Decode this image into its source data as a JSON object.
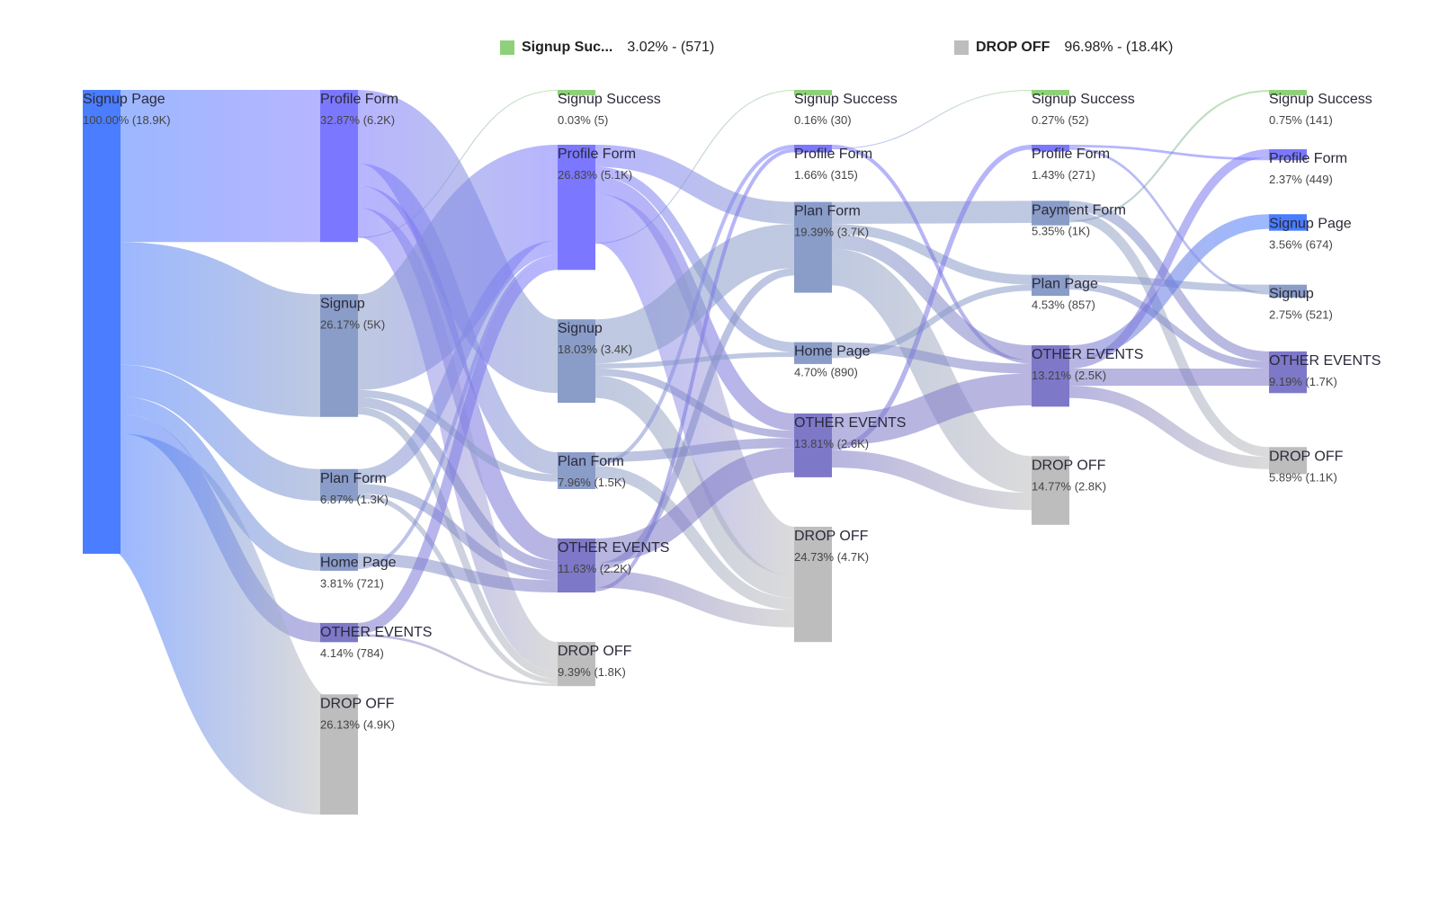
{
  "legend": [
    {
      "label": "Signup Suc...",
      "value": "3.02% - (571)",
      "color": "#8fd17a"
    },
    {
      "label": "DROP OFF",
      "value": "96.98% - (18.4K)",
      "color": "#bdbdbd"
    }
  ],
  "colors": {
    "signup_page": "#4a7dff",
    "profile_form": "#7b78ff",
    "signup": "#8a9cc8",
    "plan_form": "#8a9cc8",
    "home_page": "#8a9cc8",
    "payment_form": "#8a9cc8",
    "plan_page": "#8a9cc8",
    "other_events": "#7d78c8",
    "drop_off": "#bdbdbd",
    "signup_success": "#8fd17a"
  },
  "chart_data": {
    "type": "sankey",
    "columns": [
      {
        "nodes": [
          {
            "id": "c0_signup_page",
            "name": "Signup Page",
            "pct": "100.00%",
            "count": "(18.9K)",
            "value": 18900,
            "color": "signup_page"
          }
        ]
      },
      {
        "nodes": [
          {
            "id": "c1_profile_form",
            "name": "Profile Form",
            "pct": "32.87%",
            "count": "(6.2K)",
            "value": 6200,
            "color": "profile_form"
          },
          {
            "id": "c1_signup",
            "name": "Signup",
            "pct": "26.17%",
            "count": "(5K)",
            "value": 5000,
            "color": "signup"
          },
          {
            "id": "c1_plan_form",
            "name": "Plan Form",
            "pct": "6.87%",
            "count": "(1.3K)",
            "value": 1300,
            "color": "plan_form"
          },
          {
            "id": "c1_home_page",
            "name": "Home Page",
            "pct": "3.81%",
            "count": "(721)",
            "value": 721,
            "color": "home_page"
          },
          {
            "id": "c1_other",
            "name": "OTHER EVENTS",
            "pct": "4.14%",
            "count": "(784)",
            "value": 784,
            "color": "other_events"
          },
          {
            "id": "c1_drop",
            "name": "DROP OFF",
            "pct": "26.13%",
            "count": "(4.9K)",
            "value": 4900,
            "color": "drop_off"
          }
        ]
      },
      {
        "nodes": [
          {
            "id": "c2_success",
            "name": "Signup Success",
            "pct": "0.03%",
            "count": "(5)",
            "value": 5,
            "color": "signup_success"
          },
          {
            "id": "c2_profile_form",
            "name": "Profile Form",
            "pct": "26.83%",
            "count": "(5.1K)",
            "value": 5100,
            "color": "profile_form"
          },
          {
            "id": "c2_signup",
            "name": "Signup",
            "pct": "18.03%",
            "count": "(3.4K)",
            "value": 3400,
            "color": "signup"
          },
          {
            "id": "c2_plan_form",
            "name": "Plan Form",
            "pct": "7.96%",
            "count": "(1.5K)",
            "value": 1500,
            "color": "plan_form"
          },
          {
            "id": "c2_other",
            "name": "OTHER EVENTS",
            "pct": "11.63%",
            "count": "(2.2K)",
            "value": 2200,
            "color": "other_events"
          },
          {
            "id": "c2_drop",
            "name": "DROP OFF",
            "pct": "9.39%",
            "count": "(1.8K)",
            "value": 1800,
            "color": "drop_off"
          }
        ]
      },
      {
        "nodes": [
          {
            "id": "c3_success",
            "name": "Signup Success",
            "pct": "0.16%",
            "count": "(30)",
            "value": 30,
            "color": "signup_success"
          },
          {
            "id": "c3_profile_form",
            "name": "Profile Form",
            "pct": "1.66%",
            "count": "(315)",
            "value": 315,
            "color": "profile_form"
          },
          {
            "id": "c3_plan_form",
            "name": "Plan Form",
            "pct": "19.39%",
            "count": "(3.7K)",
            "value": 3700,
            "color": "plan_form"
          },
          {
            "id": "c3_home_page",
            "name": "Home Page",
            "pct": "4.70%",
            "count": "(890)",
            "value": 890,
            "color": "home_page"
          },
          {
            "id": "c3_other",
            "name": "OTHER EVENTS",
            "pct": "13.81%",
            "count": "(2.6K)",
            "value": 2600,
            "color": "other_events"
          },
          {
            "id": "c3_drop",
            "name": "DROP OFF",
            "pct": "24.73%",
            "count": "(4.7K)",
            "value": 4700,
            "color": "drop_off"
          }
        ]
      },
      {
        "nodes": [
          {
            "id": "c4_success",
            "name": "Signup Success",
            "pct": "0.27%",
            "count": "(52)",
            "value": 52,
            "color": "signup_success"
          },
          {
            "id": "c4_profile_form",
            "name": "Profile Form",
            "pct": "1.43%",
            "count": "(271)",
            "value": 271,
            "color": "profile_form"
          },
          {
            "id": "c4_payment_form",
            "name": "Payment Form",
            "pct": "5.35%",
            "count": "(1K)",
            "value": 1000,
            "color": "payment_form"
          },
          {
            "id": "c4_plan_page",
            "name": "Plan Page",
            "pct": "4.53%",
            "count": "(857)",
            "value": 857,
            "color": "plan_page"
          },
          {
            "id": "c4_other",
            "name": "OTHER EVENTS",
            "pct": "13.21%",
            "count": "(2.5K)",
            "value": 2500,
            "color": "other_events"
          },
          {
            "id": "c4_drop",
            "name": "DROP OFF",
            "pct": "14.77%",
            "count": "(2.8K)",
            "value": 2800,
            "color": "drop_off"
          }
        ]
      },
      {
        "nodes": [
          {
            "id": "c5_success",
            "name": "Signup Success",
            "pct": "0.75%",
            "count": "(141)",
            "value": 141,
            "color": "signup_success"
          },
          {
            "id": "c5_profile_form",
            "name": "Profile Form",
            "pct": "2.37%",
            "count": "(449)",
            "value": 449,
            "color": "profile_form"
          },
          {
            "id": "c5_signup_page",
            "name": "Signup Page",
            "pct": "3.56%",
            "count": "(674)",
            "value": 674,
            "color": "signup_page"
          },
          {
            "id": "c5_signup",
            "name": "Signup",
            "pct": "2.75%",
            "count": "(521)",
            "value": 521,
            "color": "signup"
          },
          {
            "id": "c5_other",
            "name": "OTHER EVENTS",
            "pct": "9.19%",
            "count": "(1.7K)",
            "value": 1700,
            "color": "other_events"
          },
          {
            "id": "c5_drop",
            "name": "DROP OFF",
            "pct": "5.89%",
            "count": "(1.1K)",
            "value": 1100,
            "color": "drop_off"
          }
        ]
      }
    ],
    "links": [
      {
        "source": "c0_signup_page",
        "target": "c1_profile_form",
        "value": 6200
      },
      {
        "source": "c0_signup_page",
        "target": "c1_signup",
        "value": 5000
      },
      {
        "source": "c0_signup_page",
        "target": "c1_plan_form",
        "value": 1300
      },
      {
        "source": "c0_signup_page",
        "target": "c1_home_page",
        "value": 721
      },
      {
        "source": "c0_signup_page",
        "target": "c1_other",
        "value": 784
      },
      {
        "source": "c0_signup_page",
        "target": "c1_drop",
        "value": 4900
      },
      {
        "source": "c1_profile_form",
        "target": "c2_signup",
        "value": 3000
      },
      {
        "source": "c1_profile_form",
        "target": "c2_plan_form",
        "value": 900
      },
      {
        "source": "c1_profile_form",
        "target": "c2_other",
        "value": 900
      },
      {
        "source": "c1_profile_form",
        "target": "c2_drop",
        "value": 1200
      },
      {
        "source": "c1_profile_form",
        "target": "c2_success",
        "value": 5
      },
      {
        "source": "c1_signup",
        "target": "c2_profile_form",
        "value": 3900
      },
      {
        "source": "c1_signup",
        "target": "c2_plan_form",
        "value": 300
      },
      {
        "source": "c1_signup",
        "target": "c2_other",
        "value": 400
      },
      {
        "source": "c1_signup",
        "target": "c2_drop",
        "value": 300
      },
      {
        "source": "c1_plan_form",
        "target": "c2_profile_form",
        "value": 600
      },
      {
        "source": "c1_plan_form",
        "target": "c2_other",
        "value": 400
      },
      {
        "source": "c1_plan_form",
        "target": "c2_drop",
        "value": 200
      },
      {
        "source": "c1_home_page",
        "target": "c2_other",
        "value": 500
      },
      {
        "source": "c1_home_page",
        "target": "c2_profile_form",
        "value": 150
      },
      {
        "source": "c1_other",
        "target": "c2_profile_form",
        "value": 450
      },
      {
        "source": "c1_other",
        "target": "c2_drop",
        "value": 100
      },
      {
        "source": "c2_profile_form",
        "target": "c3_plan_form",
        "value": 900
      },
      {
        "source": "c2_profile_form",
        "target": "c3_home_page",
        "value": 400
      },
      {
        "source": "c2_profile_form",
        "target": "c3_other",
        "value": 700
      },
      {
        "source": "c2_profile_form",
        "target": "c3_drop",
        "value": 2000
      },
      {
        "source": "c2_profile_form",
        "target": "c3_success",
        "value": 15
      },
      {
        "source": "c2_signup",
        "target": "c3_plan_form",
        "value": 1800
      },
      {
        "source": "c2_signup",
        "target": "c3_home_page",
        "value": 200
      },
      {
        "source": "c2_signup",
        "target": "c3_other",
        "value": 300
      },
      {
        "source": "c2_signup",
        "target": "c3_drop",
        "value": 900
      },
      {
        "source": "c2_plan_form",
        "target": "c3_other",
        "value": 400
      },
      {
        "source": "c2_plan_form",
        "target": "c3_profile_form",
        "value": 150
      },
      {
        "source": "c2_plan_form",
        "target": "c3_drop",
        "value": 500
      },
      {
        "source": "c2_other",
        "target": "c3_other",
        "value": 1000
      },
      {
        "source": "c2_other",
        "target": "c3_plan_form",
        "value": 300
      },
      {
        "source": "c2_other",
        "target": "c3_drop",
        "value": 700
      },
      {
        "source": "c2_other",
        "target": "c3_profile_form",
        "value": 150
      },
      {
        "source": "c3_plan_form",
        "target": "c4_payment_form",
        "value": 900
      },
      {
        "source": "c3_plan_form",
        "target": "c4_plan_page",
        "value": 400
      },
      {
        "source": "c3_plan_form",
        "target": "c4_other",
        "value": 600
      },
      {
        "source": "c3_plan_form",
        "target": "c4_drop",
        "value": 1500
      },
      {
        "source": "c3_profile_form",
        "target": "c4_other",
        "value": 150
      },
      {
        "source": "c3_profile_form",
        "target": "c4_success",
        "value": 30
      },
      {
        "source": "c3_home_page",
        "target": "c4_other",
        "value": 400
      },
      {
        "source": "c3_home_page",
        "target": "c4_plan_page",
        "value": 250
      },
      {
        "source": "c3_other",
        "target": "c4_other",
        "value": 1300
      },
      {
        "source": "c3_other",
        "target": "c4_profile_form",
        "value": 200
      },
      {
        "source": "c3_other",
        "target": "c4_drop",
        "value": 700
      },
      {
        "source": "c4_payment_form",
        "target": "c5_other",
        "value": 400
      },
      {
        "source": "c4_payment_form",
        "target": "c5_drop",
        "value": 400
      },
      {
        "source": "c4_payment_form",
        "target": "c5_success",
        "value": 80
      },
      {
        "source": "c4_plan_page",
        "target": "c5_signup",
        "value": 300
      },
      {
        "source": "c4_plan_page",
        "target": "c5_other",
        "value": 300
      },
      {
        "source": "c4_other",
        "target": "c5_signup_page",
        "value": 600
      },
      {
        "source": "c4_other",
        "target": "c5_profile_form",
        "value": 350
      },
      {
        "source": "c4_other",
        "target": "c5_other",
        "value": 700
      },
      {
        "source": "c4_other",
        "target": "c5_drop",
        "value": 500
      },
      {
        "source": "c4_profile_form",
        "target": "c5_profile_form",
        "value": 100
      },
      {
        "source": "c4_profile_form",
        "target": "c5_signup",
        "value": 100
      }
    ]
  }
}
